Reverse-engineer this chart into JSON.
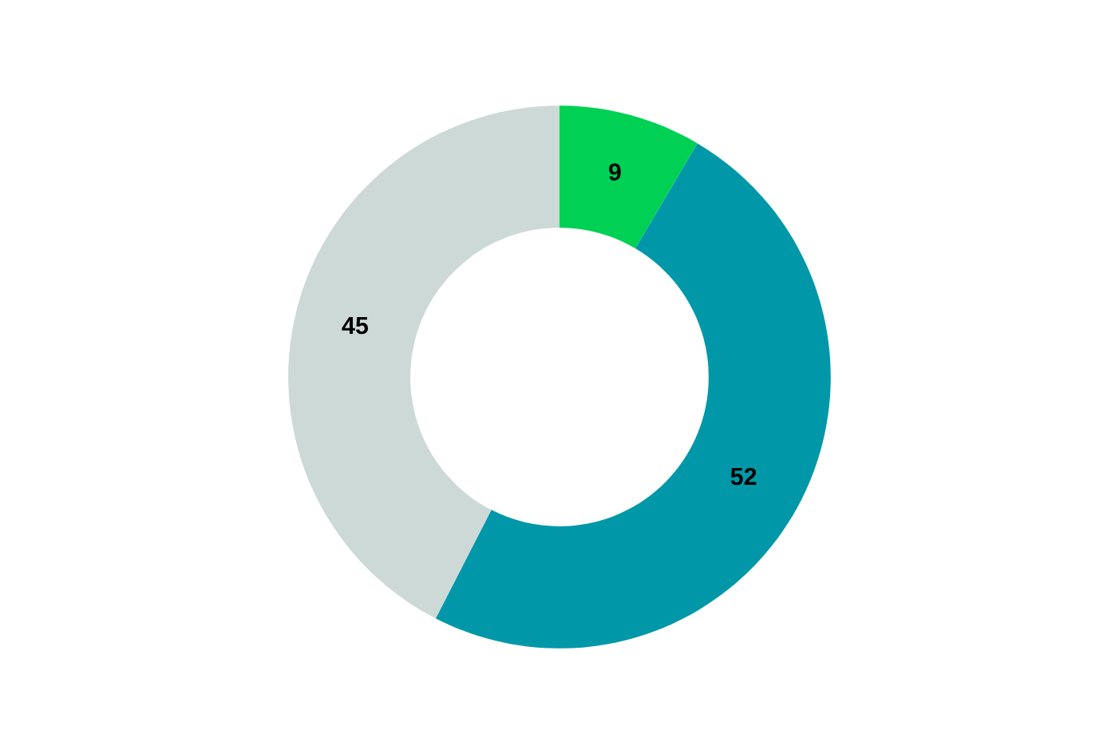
{
  "chart_data": {
    "type": "donut",
    "categories": [
      null,
      null,
      null
    ],
    "values": [
      9,
      52,
      45
    ],
    "colors": [
      "#00d154",
      "#0098a8",
      "#cdd9d7"
    ],
    "data_labels": true
  }
}
